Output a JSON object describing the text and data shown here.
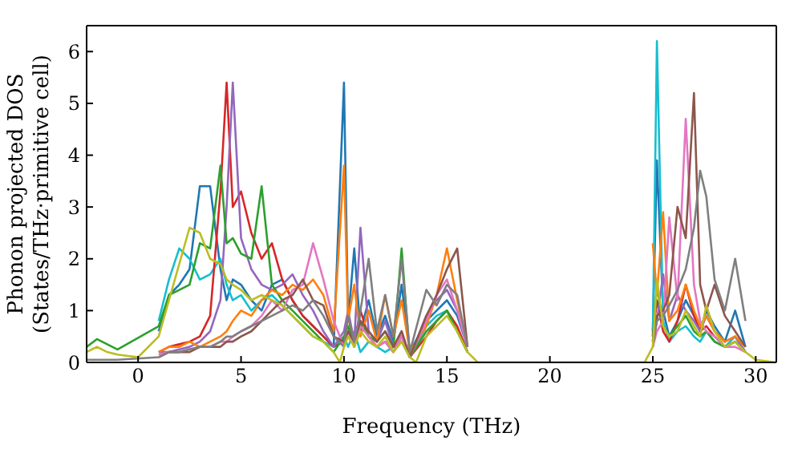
{
  "chart_data": {
    "type": "line",
    "xlabel": "Frequency (THz)",
    "ylabel": "Phonon projected DOS\n(States/THz·primitive cell)",
    "xlim": [
      -2.5,
      31
    ],
    "xticks": [
      0,
      5,
      10,
      15,
      20,
      25,
      30
    ],
    "ylim": [
      0,
      6.5
    ],
    "yticks": [
      0,
      1,
      2,
      3,
      4,
      5,
      6
    ],
    "series": [
      {
        "color": "#1f77b4",
        "x": [
          1,
          1.5,
          2,
          2.5,
          3,
          3.5,
          4,
          4.3,
          4.6,
          5,
          5.5,
          6,
          6.5,
          7,
          7.5,
          8,
          8.5,
          9,
          9.5,
          10,
          10.2,
          10.5,
          10.8,
          11.2,
          11.6,
          12,
          12.4,
          12.8,
          13.2,
          14,
          14.5,
          15,
          15.5,
          16,
          20,
          25,
          25.2,
          25.5,
          25.8,
          26.2,
          26.6,
          27,
          27.3,
          27.6,
          28,
          28.5,
          29,
          29.5
        ],
        "values": [
          0.6,
          1.3,
          1.5,
          1.8,
          3.4,
          3.4,
          1.8,
          1.2,
          1.6,
          1.5,
          1.2,
          1.0,
          1.5,
          1.6,
          1.2,
          0.9,
          0.7,
          0.5,
          0.3,
          5.4,
          0.8,
          2.2,
          0.6,
          1.2,
          0.5,
          0.9,
          0.4,
          1.5,
          0.2,
          0.8,
          1.0,
          1.2,
          0.9,
          0.3,
          null,
          0.6,
          3.9,
          1.0,
          0.5,
          0.8,
          1.2,
          0.9,
          0.6,
          1.0,
          0.7,
          0.4,
          1.0,
          0.3
        ]
      },
      {
        "color": "#17becf",
        "x": [
          1,
          1.5,
          2,
          2.5,
          3,
          3.5,
          4,
          4.3,
          4.6,
          5,
          5.5,
          6,
          6.5,
          7,
          7.5,
          8,
          8.5,
          9,
          9.5,
          10,
          10.2,
          10.5,
          10.8,
          11.2,
          11.6,
          12,
          12.4,
          12.8,
          13.2,
          14,
          14.5,
          15,
          15.5,
          16,
          20,
          25,
          25.2,
          25.5,
          25.8,
          26.2,
          26.6,
          27,
          27.3,
          27.6,
          28,
          28.5,
          29,
          29.5
        ],
        "values": [
          0.8,
          1.6,
          2.2,
          2.0,
          1.6,
          1.7,
          2.0,
          1.5,
          1.2,
          1.3,
          1.0,
          1.2,
          1.3,
          1.1,
          0.9,
          0.7,
          0.5,
          0.4,
          0.3,
          0.5,
          0.3,
          0.6,
          0.2,
          0.4,
          0.3,
          0.2,
          0.3,
          0.4,
          0.1,
          0.7,
          0.9,
          1.0,
          0.6,
          0.2,
          null,
          0.5,
          6.2,
          0.8,
          0.4,
          0.6,
          0.7,
          0.5,
          0.4,
          0.6,
          0.4,
          0.3,
          0.5,
          0.2
        ]
      },
      {
        "color": "#d62728",
        "x": [
          1,
          1.5,
          2,
          2.5,
          3,
          3.5,
          4,
          4.3,
          4.6,
          5,
          5.5,
          6,
          6.5,
          7,
          7.5,
          8,
          8.5,
          9,
          9.5,
          10,
          10.2,
          10.5,
          10.8,
          11.2,
          11.6,
          12,
          12.4,
          12.8,
          13.2,
          14,
          14.5,
          15,
          15.5,
          16,
          20,
          25,
          25.2,
          25.5,
          25.8,
          26.2,
          26.6,
          27,
          27.3,
          27.6,
          28,
          28.5,
          29,
          29.5
        ],
        "values": [
          0.2,
          0.3,
          0.35,
          0.4,
          0.5,
          0.9,
          3.3,
          5.4,
          3.0,
          3.3,
          2.5,
          2.0,
          2.3,
          1.6,
          1.2,
          0.9,
          0.7,
          0.5,
          0.3,
          0.4,
          0.9,
          0.3,
          1.0,
          0.5,
          0.3,
          0.4,
          0.2,
          0.5,
          0.1,
          0.5,
          0.8,
          1.0,
          0.7,
          0.2,
          null,
          0.5,
          1.2,
          0.6,
          0.4,
          0.8,
          1.5,
          0.9,
          0.6,
          0.7,
          0.5,
          0.3,
          0.4,
          0.2
        ]
      },
      {
        "color": "#9467bd",
        "x": [
          1,
          1.5,
          2,
          2.5,
          3,
          3.5,
          4,
          4.3,
          4.6,
          5,
          5.5,
          6,
          6.5,
          7,
          7.5,
          8,
          8.5,
          9,
          9.5,
          10,
          10.2,
          10.5,
          10.8,
          11.2,
          11.6,
          12,
          12.4,
          12.8,
          13.2,
          14,
          14.5,
          15,
          15.5,
          16,
          20,
          25,
          25.2,
          25.5,
          25.8,
          26.2,
          26.6,
          27,
          27.3,
          27.6,
          28,
          28.5,
          29,
          29.5
        ],
        "values": [
          0.2,
          0.2,
          0.25,
          0.3,
          0.4,
          0.6,
          1.2,
          3.0,
          5.4,
          2.4,
          1.8,
          1.5,
          1.4,
          1.5,
          1.7,
          1.3,
          1.0,
          0.6,
          0.3,
          0.6,
          1.0,
          0.4,
          2.6,
          0.6,
          0.4,
          0.8,
          0.3,
          0.6,
          0.1,
          0.9,
          1.2,
          1.4,
          1.0,
          0.3,
          null,
          0.4,
          0.8,
          1.7,
          0.8,
          1.3,
          1.0,
          0.8,
          0.6,
          0.9,
          0.6,
          0.4,
          0.5,
          0.2
        ]
      },
      {
        "color": "#2ca02c",
        "x": [
          -2.5,
          -2,
          -1.5,
          -1,
          1,
          1.5,
          2,
          2.5,
          3,
          3.5,
          4,
          4.3,
          4.6,
          5,
          5.5,
          6,
          6.5,
          7,
          7.5,
          8,
          8.5,
          9,
          9.5,
          10,
          10.2,
          10.5,
          10.8,
          11.2,
          11.6,
          12,
          12.4,
          12.8,
          13.2,
          14,
          14.5,
          15,
          15.5,
          16,
          20,
          25,
          25.2,
          25.5,
          25.8,
          26.2,
          26.6,
          27,
          27.3,
          27.6,
          28,
          28.5,
          29,
          29.5
        ],
        "values": [
          0.3,
          0.45,
          0.35,
          0.25,
          0.7,
          1.3,
          1.4,
          1.5,
          2.3,
          2.2,
          3.8,
          2.3,
          2.4,
          2.1,
          2.0,
          3.4,
          1.5,
          1.2,
          1.0,
          0.8,
          0.6,
          0.4,
          0.2,
          0.5,
          0.7,
          0.3,
          0.8,
          0.5,
          0.4,
          0.6,
          0.3,
          2.2,
          0.1,
          0.6,
          0.8,
          1.0,
          0.6,
          0.2,
          null,
          0.4,
          1.5,
          0.7,
          0.5,
          0.7,
          0.9,
          0.6,
          0.5,
          0.6,
          0.4,
          0.3,
          0.4,
          0.2
        ]
      },
      {
        "color": "#ff7f0e",
        "x": [
          1,
          1.5,
          2,
          2.5,
          3,
          3.5,
          4,
          4.3,
          4.6,
          5,
          5.5,
          6,
          6.5,
          7,
          7.5,
          8,
          8.5,
          9,
          9.5,
          10,
          10.2,
          10.5,
          10.8,
          11.2,
          11.6,
          12,
          12.4,
          12.8,
          13.2,
          14,
          14.5,
          15,
          15.5,
          16,
          20,
          25,
          25.2,
          25.5,
          25.8,
          26.2,
          26.6,
          27,
          27.3,
          27.6,
          28,
          28.5,
          29,
          29.5
        ],
        "values": [
          0.2,
          0.3,
          0.3,
          0.4,
          0.3,
          0.4,
          0.5,
          0.6,
          0.8,
          1.0,
          0.9,
          1.2,
          1.4,
          1.3,
          1.5,
          1.4,
          1.6,
          1.3,
          0.6,
          3.8,
          0.8,
          1.5,
          0.5,
          1.0,
          0.4,
          1.3,
          0.5,
          1.2,
          0.2,
          0.7,
          1.3,
          2.2,
          1.2,
          0.3,
          null,
          2.3,
          1.3,
          2.9,
          0.8,
          1.0,
          1.5,
          1.0,
          0.7,
          0.9,
          0.6,
          0.4,
          0.5,
          0.3
        ]
      },
      {
        "color": "#e377c2",
        "x": [
          1,
          1.5,
          2,
          2.5,
          3,
          3.5,
          4,
          4.3,
          4.6,
          5,
          5.5,
          6,
          6.5,
          7,
          7.5,
          8,
          8.5,
          9,
          9.5,
          10,
          10.2,
          10.5,
          10.8,
          11.2,
          11.6,
          12,
          12.4,
          12.8,
          13.2,
          14,
          14.5,
          15,
          15.5,
          16,
          20,
          25,
          25.2,
          25.5,
          25.8,
          26.2,
          26.6,
          27,
          27.3,
          27.6,
          28,
          28.5,
          29,
          29.5
        ],
        "values": [
          0.15,
          0.2,
          0.2,
          0.25,
          0.3,
          0.3,
          0.4,
          0.4,
          0.5,
          0.6,
          0.7,
          0.9,
          1.2,
          1.0,
          1.4,
          1.5,
          2.3,
          1.6,
          0.8,
          0.3,
          0.6,
          0.3,
          0.7,
          0.5,
          0.3,
          0.4,
          0.2,
          0.5,
          0.1,
          0.8,
          1.3,
          1.6,
          1.0,
          0.3,
          null,
          0.3,
          0.6,
          0.8,
          2.8,
          1.2,
          4.7,
          1.5,
          0.8,
          0.6,
          0.5,
          0.3,
          0.3,
          0.2
        ]
      },
      {
        "color": "#8c564b",
        "x": [
          1,
          1.5,
          2,
          2.5,
          3,
          3.5,
          4,
          4.3,
          4.6,
          5,
          5.5,
          6,
          6.5,
          7,
          7.5,
          8,
          8.5,
          9,
          9.5,
          10,
          10.2,
          10.5,
          10.8,
          11.2,
          11.6,
          12,
          12.4,
          12.8,
          13.2,
          14,
          14.5,
          15,
          15.5,
          16,
          20,
          25,
          25.2,
          25.5,
          25.8,
          26.2,
          26.6,
          27,
          27.3,
          27.6,
          28,
          28.5,
          29,
          29.5
        ],
        "values": [
          0.1,
          0.2,
          0.2,
          0.2,
          0.3,
          0.3,
          0.3,
          0.4,
          0.4,
          0.5,
          0.6,
          0.8,
          1.0,
          1.2,
          1.3,
          1.6,
          1.2,
          1.1,
          0.5,
          0.4,
          0.6,
          0.4,
          0.8,
          0.6,
          0.4,
          0.6,
          0.3,
          0.6,
          0.1,
          0.9,
          1.3,
          1.8,
          2.2,
          0.3,
          null,
          0.4,
          0.9,
          1.0,
          1.3,
          3.0,
          2.4,
          5.2,
          1.5,
          1.0,
          1.5,
          0.9,
          0.6,
          0.3
        ]
      },
      {
        "color": "#7f7f7f",
        "x": [
          -2.5,
          -2,
          -1.5,
          -1,
          1,
          1.5,
          2,
          2.5,
          3,
          3.5,
          4,
          4.3,
          4.6,
          5,
          5.5,
          6,
          6.5,
          7,
          7.5,
          8,
          8.5,
          9,
          9.5,
          10,
          10.2,
          10.5,
          10.8,
          11.2,
          11.6,
          12,
          12.4,
          12.8,
          13.2,
          14,
          14.5,
          15,
          15.5,
          16,
          20,
          25,
          25.2,
          25.5,
          25.8,
          26.2,
          26.6,
          27,
          27.3,
          27.6,
          28,
          28.5,
          29,
          29.5
        ],
        "values": [
          0.05,
          0.05,
          0.05,
          0.05,
          0.1,
          0.2,
          0.2,
          0.25,
          0.3,
          0.3,
          0.4,
          0.5,
          0.5,
          0.6,
          0.7,
          0.8,
          0.9,
          1.0,
          1.1,
          1.0,
          1.2,
          0.9,
          0.5,
          0.3,
          0.9,
          0.4,
          1.0,
          2.0,
          0.6,
          1.3,
          0.5,
          2.0,
          0.2,
          1.4,
          1.1,
          1.5,
          1.3,
          0.3,
          null,
          0.3,
          0.8,
          0.9,
          1.1,
          1.4,
          1.8,
          2.6,
          3.7,
          3.2,
          1.6,
          1.0,
          2.0,
          0.8
        ]
      },
      {
        "color": "#bcbd22",
        "x": [
          -2.5,
          -2,
          -1.5,
          -1,
          0,
          1,
          1.5,
          2,
          2.5,
          3,
          3.5,
          4,
          4.3,
          4.6,
          5,
          5.5,
          6,
          6.5,
          7,
          7.5,
          8,
          8.5,
          9,
          9.5,
          9.8,
          10,
          10.2,
          10.5,
          10.8,
          11.2,
          11.6,
          12,
          12.4,
          12.8,
          13.2,
          13.5,
          14,
          14.5,
          15,
          15.5,
          16,
          16.5,
          24.6,
          25,
          25.2,
          25.5,
          25.8,
          26.2,
          26.6,
          27,
          27.3,
          27.6,
          28,
          28.5,
          29,
          29.5,
          30,
          31
        ],
        "values": [
          0.2,
          0.3,
          0.2,
          0.15,
          0.1,
          0.5,
          1.2,
          1.9,
          2.6,
          2.5,
          2.0,
          1.9,
          1.6,
          1.5,
          1.4,
          1.2,
          1.3,
          1.2,
          1.1,
          0.9,
          0.7,
          0.5,
          0.4,
          0.2,
          0,
          0.3,
          0.5,
          0.3,
          0.6,
          0.4,
          0.3,
          0.5,
          0.2,
          0.4,
          0.1,
          0,
          0.5,
          0.7,
          0.9,
          0.6,
          0.2,
          0,
          0,
          0.3,
          1.6,
          0.7,
          0.5,
          0.6,
          1.0,
          0.7,
          0.5,
          1.1,
          0.6,
          0.3,
          0.4,
          0.2,
          0.05,
          0
        ]
      }
    ]
  }
}
